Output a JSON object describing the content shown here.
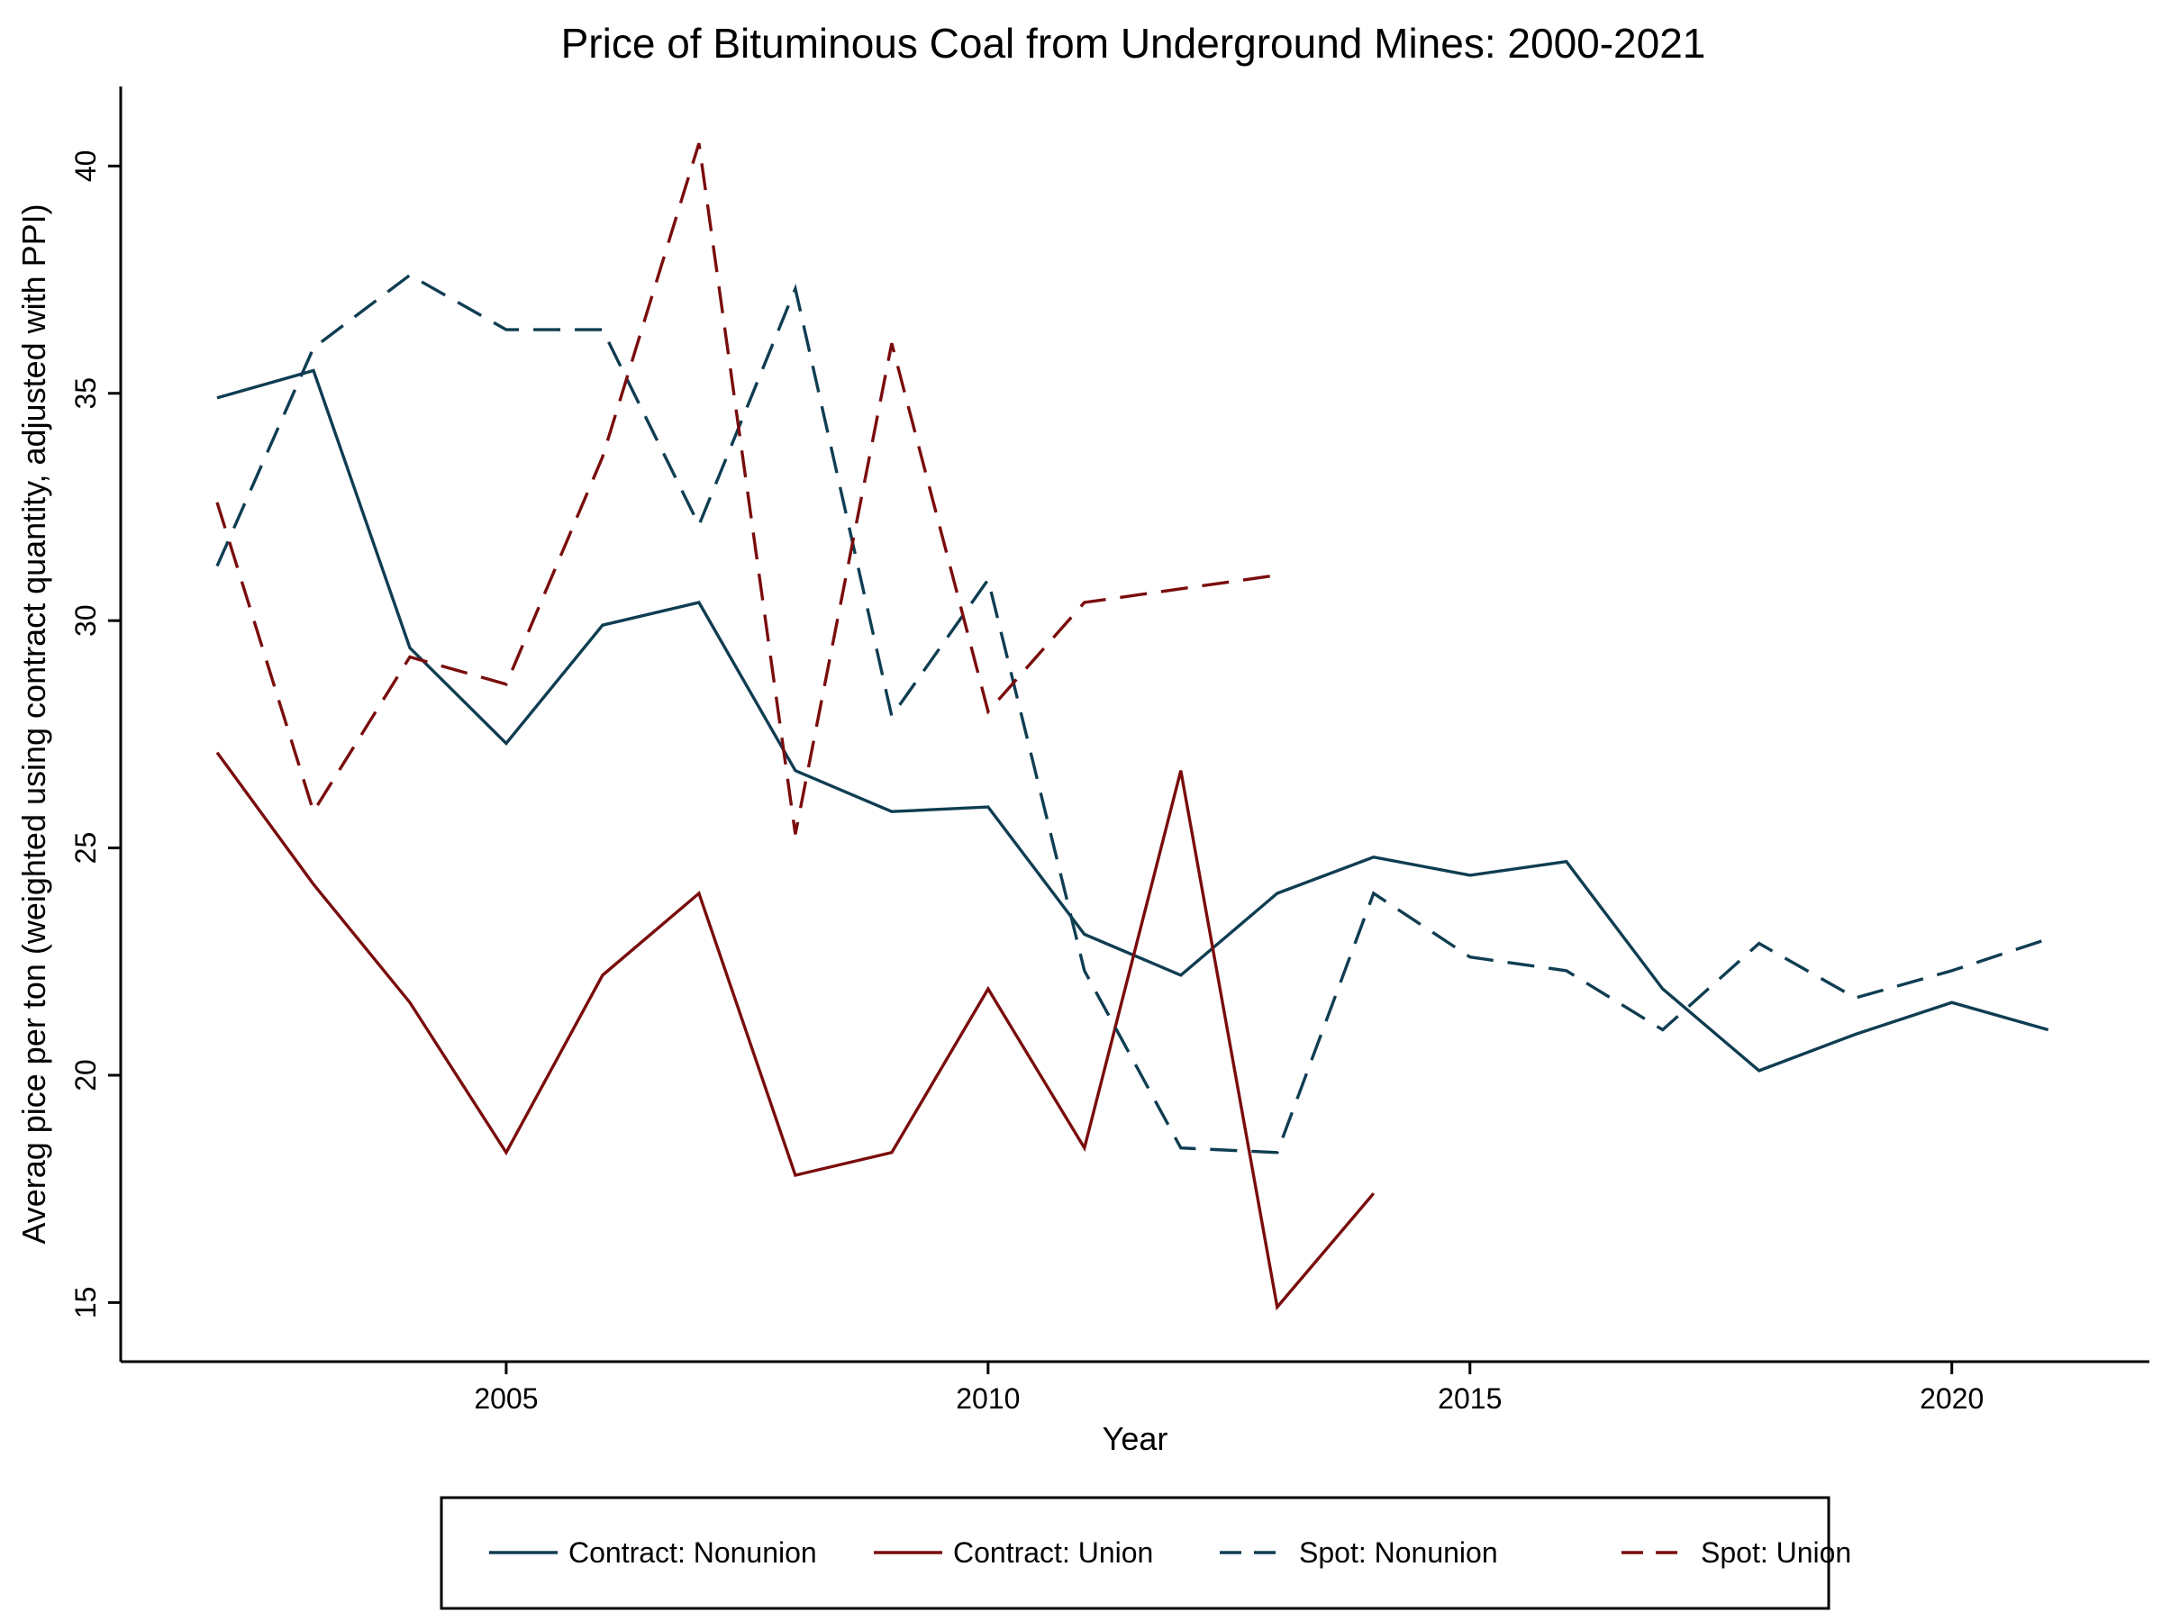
{
  "chart_data": {
    "type": "line",
    "title": "Price of Bituminous Coal from Underground Mines: 2000-2021",
    "xlabel": "Year",
    "ylabel": "Averag pice per ton (weighted using contract quantity, adjusted with PPI)",
    "xlim": [
      2001,
      2022.05
    ],
    "ylim": [
      13.7,
      41.75
    ],
    "xticks": [
      2005,
      2010,
      2015,
      2020
    ],
    "yticks": [
      15,
      20,
      25,
      30,
      35,
      40
    ],
    "grid": false,
    "legend": "bottom",
    "series": [
      {
        "name": "Contract: Nonunion",
        "color": "#0f3d52",
        "dash": "solid",
        "x": [
          2002,
          2003,
          2004,
          2005,
          2006,
          2007,
          2008,
          2009,
          2010,
          2011,
          2012,
          2013,
          2014,
          2015,
          2016,
          2017,
          2018,
          2019,
          2020,
          2021
        ],
        "values": [
          34.9,
          35.5,
          29.4,
          27.3,
          29.9,
          30.4,
          26.7,
          25.8,
          25.9,
          23.1,
          22.2,
          24.0,
          24.8,
          24.4,
          24.7,
          21.9,
          20.1,
          20.9,
          21.6,
          21.0
        ]
      },
      {
        "name": "Contract: Union",
        "color": "#7a0c0c",
        "dash": "solid",
        "x": [
          2002,
          2003,
          2004,
          2005,
          2006,
          2007,
          2008,
          2009,
          2010,
          2011,
          2012,
          2013,
          2014
        ],
        "values": [
          27.1,
          24.2,
          21.6,
          18.3,
          22.2,
          24.0,
          17.8,
          18.3,
          21.9,
          18.4,
          26.7,
          14.9,
          17.4
        ]
      },
      {
        "name": "Spot: Nonunion",
        "color": "#0f3d52",
        "dash": "dashed",
        "x": [
          2002,
          2003,
          2004,
          2005,
          2006,
          2007,
          2008,
          2009,
          2010,
          2011,
          2012,
          2013,
          2014,
          2015,
          2016,
          2017,
          2018,
          2019,
          2020,
          2021
        ],
        "values": [
          31.2,
          36.0,
          37.6,
          36.4,
          36.4,
          32.1,
          37.3,
          27.9,
          30.9,
          22.3,
          18.4,
          18.3,
          24.0,
          22.6,
          22.3,
          21.0,
          22.9,
          21.7,
          22.3,
          23.0
        ]
      },
      {
        "name": "Spot: Union",
        "color": "#7a0c0c",
        "dash": "dashed",
        "x": [
          2002,
          2003,
          2004,
          2005,
          2006,
          2007,
          2008,
          2009,
          2010,
          2011,
          2012,
          2013
        ],
        "values": [
          32.6,
          25.8,
          29.2,
          28.6,
          33.6,
          40.5,
          25.3,
          36.1,
          28.0,
          30.4,
          30.7,
          31.0
        ]
      }
    ]
  }
}
